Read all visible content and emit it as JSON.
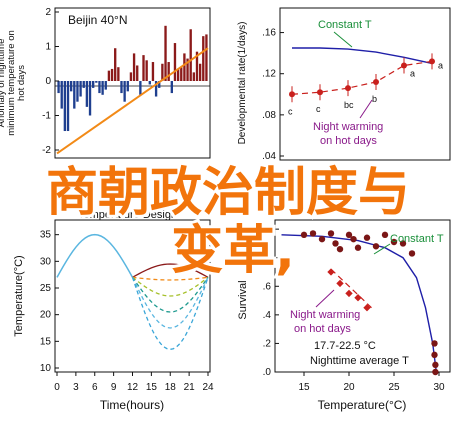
{
  "overlay": {
    "line1": "商朝政治制度与",
    "line2": "变革,",
    "color": "#f2740b"
  },
  "chart_data": [
    {
      "panel": "top-left",
      "type": "bar",
      "title": "Beijin 40°N",
      "ylabel": "Anomaly of nighttime minimum temperature on hot days",
      "yticks": [
        "2",
        "1",
        "0",
        "-1",
        "-2"
      ],
      "ylim": [
        -2,
        2
      ],
      "positive_color": "#8b1a1a",
      "negative_color": "#1f3f8f",
      "trend_color": "#f28a17",
      "values": [
        -0.35,
        -0.8,
        -1.45,
        -1.45,
        -0.3,
        -0.8,
        -0.6,
        -0.45,
        -0.2,
        -0.75,
        -1.0,
        -0.2,
        -0.05,
        -0.35,
        -0.4,
        -0.25,
        0.3,
        0.35,
        0.95,
        0.4,
        -0.35,
        -0.6,
        -0.3,
        0.25,
        0.8,
        0.45,
        -0.4,
        0.75,
        0.6,
        -0.1,
        0.55,
        -0.45,
        -0.2,
        0.5,
        1.6,
        0.55,
        -0.35,
        1.1,
        0.35,
        0.4,
        0.8,
        0.65,
        1.5,
        0.25,
        0.85,
        0.5,
        1.3,
        1.35
      ],
      "trend": [
        -2.1,
        0.95
      ]
    },
    {
      "panel": "top-right",
      "type": "scatter",
      "ylabel": "Developmental rate(1/days)",
      "yticks": [
        ".16",
        ".12",
        ".08",
        ".04"
      ],
      "ylim": [
        0.04,
        0.18
      ],
      "constant_label": "Constant T",
      "constant_color": "#1f1fa8",
      "warming_label": "Night warming on hot days",
      "warming_color": "#c9201d",
      "annotation_constant": "Constant T",
      "annotation_warming": [
        "Night warming",
        "on hot days"
      ],
      "constant_curve": [
        0.145,
        0.145,
        0.144,
        0.141,
        0.136,
        0.13
      ],
      "warming_points": [
        {
          "label": "c",
          "y": 0.1
        },
        {
          "label": "c",
          "y": 0.102
        },
        {
          "label": "bc",
          "y": 0.106
        },
        {
          "label": "b",
          "y": 0.112
        },
        {
          "label": "a",
          "y": 0.128
        },
        {
          "label": "a",
          "y": 0.132
        }
      ]
    },
    {
      "panel": "bottom-left",
      "type": "line",
      "title": "Temperature Design",
      "xlabel": "Time(hours)",
      "ylabel": "Temperature(°C)",
      "xticks": [
        "0",
        "3",
        "6",
        "9",
        "12",
        "15",
        "18",
        "21",
        "24"
      ],
      "yticks": [
        "35",
        "30",
        "25",
        "20",
        "15",
        "10"
      ],
      "xlim": [
        0,
        24
      ],
      "ylim": [
        10,
        37
      ],
      "day_curve_color": "#5ab6e0",
      "series": [
        {
          "color": "#8b1a1a",
          "dash": "",
          "night_min": 29.5
        },
        {
          "color": "#f28a17",
          "dash": "4,3",
          "night_min": 26.5
        },
        {
          "color": "#a6c02a",
          "dash": "4,3",
          "night_min": 23.5
        },
        {
          "color": "#1e9a8f",
          "dash": "4,3",
          "night_min": 20.5
        },
        {
          "color": "#5ab6e0",
          "dash": "4,3",
          "night_min": 17.5
        },
        {
          "color": "#3aa6d8",
          "dash": "4,3",
          "night_min": 13.5
        }
      ]
    },
    {
      "panel": "bottom-right",
      "type": "scatter",
      "xlabel": "Temperature(°C)",
      "ylabel": "Survival",
      "xticks": [
        "15",
        "20",
        "25",
        "30"
      ],
      "yticks": [
        "1.0",
        ".8",
        ".6",
        ".4",
        ".2",
        ".0"
      ],
      "xlim": [
        12,
        31
      ],
      "ylim": [
        0,
        1.05
      ],
      "constant_label": "Constant T",
      "constant_color": "#1f1fa8",
      "warming_label": "Night warming on hot days",
      "annotation_constant": "Constant T",
      "annotation_warming": [
        "Night warming",
        "on hot days"
      ],
      "nighttime_mean": "17.7-22.5 °C",
      "nighttime_caption": "Nighttime average T",
      "constant_points": [
        {
          "x": 15,
          "y": 0.96
        },
        {
          "x": 16,
          "y": 0.97
        },
        {
          "x": 17,
          "y": 0.93
        },
        {
          "x": 18,
          "y": 0.97
        },
        {
          "x": 18.5,
          "y": 0.9
        },
        {
          "x": 19,
          "y": 0.86
        },
        {
          "x": 20,
          "y": 0.96
        },
        {
          "x": 20.5,
          "y": 0.93
        },
        {
          "x": 21,
          "y": 0.87
        },
        {
          "x": 22,
          "y": 0.94
        },
        {
          "x": 23,
          "y": 0.88
        },
        {
          "x": 24,
          "y": 0.96
        },
        {
          "x": 25,
          "y": 0.91
        },
        {
          "x": 26,
          "y": 0.9
        },
        {
          "x": 27,
          "y": 0.83
        },
        {
          "x": 29.5,
          "y": 0.2
        },
        {
          "x": 29.5,
          "y": 0.12
        },
        {
          "x": 29.6,
          "y": 0.05
        },
        {
          "x": 29.6,
          "y": 0.0
        }
      ],
      "constant_fit": [
        [
          12.5,
          0.96
        ],
        [
          17,
          0.95
        ],
        [
          21,
          0.92
        ],
        [
          24,
          0.87
        ],
        [
          26,
          0.8
        ],
        [
          27.5,
          0.66
        ],
        [
          28.5,
          0.45
        ],
        [
          29.3,
          0.2
        ],
        [
          29.7,
          0.0
        ]
      ],
      "warming_points": [
        {
          "x": 18,
          "y": 0.7
        },
        {
          "x": 19,
          "y": 0.62
        },
        {
          "x": 20,
          "y": 0.55
        },
        {
          "x": 21,
          "y": 0.52
        },
        {
          "x": 22,
          "y": 0.45
        }
      ],
      "warming_fit": [
        [
          18,
          0.72
        ],
        [
          22.5,
          0.45
        ]
      ]
    }
  ]
}
